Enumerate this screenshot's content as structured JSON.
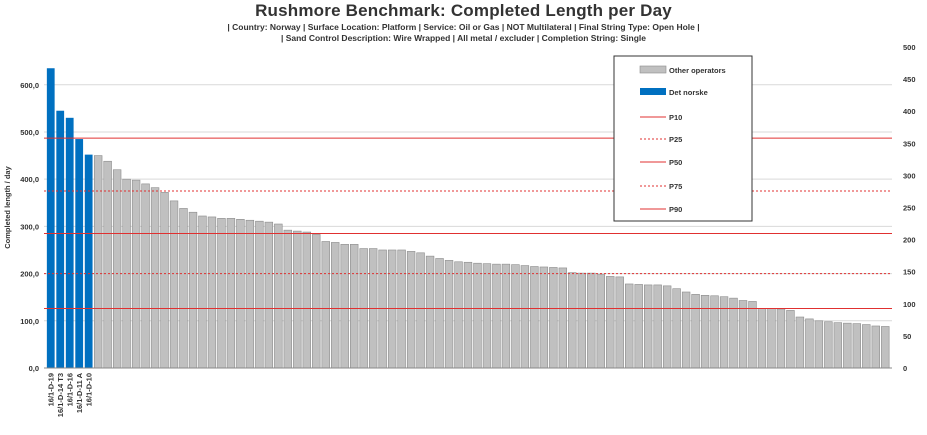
{
  "chart_data": {
    "type": "bar",
    "title": "Rushmore Benchmark: Completed Length per Day",
    "subtitle_lines": [
      "| Country: Norway | Surface Location: Platform | Service: Oil or Gas | NOT Multilateral | Final String Type: Open Hole |",
      "| Sand Control Description: Wire Wrapped | All metal / excluder | Completion String: Single"
    ],
    "ylabel": "Completed length / day",
    "ylim": [
      0,
      680
    ],
    "yticks": [
      "0,0",
      "100,0",
      "200,0",
      "300,0",
      "400,0",
      "500,0",
      "600,0"
    ],
    "y2lim": [
      0,
      500
    ],
    "y2ticks": [
      "0",
      "50",
      "100",
      "150",
      "200",
      "250",
      "300",
      "350",
      "400",
      "450",
      "500"
    ],
    "highlight_labels": [
      "16/1-D-19",
      "16/1-D-14 T3",
      "16/1-D-16",
      "16/1-D-11 A",
      "16/1-D-10"
    ],
    "series": [
      {
        "name": "Det norske",
        "color": "#0070C0",
        "values": [
          635,
          545,
          530,
          485,
          452
        ]
      },
      {
        "name": "Other operators",
        "color": "#C0C0C0",
        "values": [
          450,
          438,
          420,
          400,
          398,
          390,
          382,
          372,
          354,
          338,
          330,
          322,
          320,
          317,
          317,
          315,
          313,
          311,
          309,
          305,
          292,
          290,
          288,
          283,
          268,
          266,
          262,
          262,
          253,
          253,
          250,
          250,
          250,
          247,
          244,
          237,
          232,
          228,
          225,
          224,
          222,
          221,
          220,
          220,
          219,
          217,
          215,
          214,
          213,
          212,
          202,
          201,
          201,
          198,
          194,
          193,
          178,
          177,
          176,
          176,
          174,
          168,
          161,
          156,
          154,
          153,
          151,
          148,
          143,
          141,
          126,
          126,
          125,
          122,
          108,
          104,
          100,
          98,
          96,
          95,
          94,
          92,
          89,
          88
        ]
      }
    ],
    "reference_lines": [
      {
        "name": "P10",
        "value": 487,
        "style": "solid"
      },
      {
        "name": "P25",
        "value": 375,
        "style": "dashed"
      },
      {
        "name": "P50",
        "value": 285,
        "style": "solid"
      },
      {
        "name": "P75",
        "value": 200,
        "style": "dashed"
      },
      {
        "name": "P90",
        "value": 126,
        "style": "solid"
      }
    ],
    "reference_color": "#E03030",
    "legend_position": "top-right",
    "grid": true
  }
}
